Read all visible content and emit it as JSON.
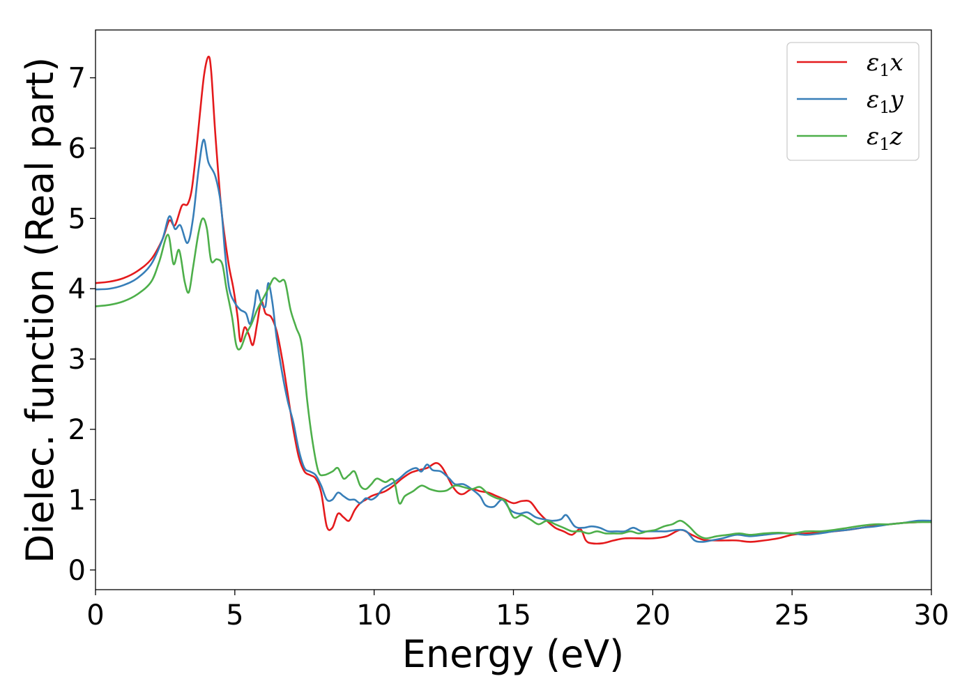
{
  "chart_data": {
    "type": "line",
    "title": "",
    "xlabel": "Energy (eV)",
    "ylabel": "Dielec. function (Real part)",
    "xlim": [
      0,
      30
    ],
    "ylim": [
      -0.28,
      7.68
    ],
    "x_ticks": [
      0,
      5,
      10,
      15,
      20,
      25,
      30
    ],
    "y_ticks": [
      0,
      1,
      2,
      3,
      4,
      5,
      6,
      7
    ],
    "grid": false,
    "legend_position": "top-right",
    "series": [
      {
        "name": "ε1x",
        "name_base": "ε",
        "name_sub": "1",
        "name_var": "x",
        "color": "#e41a1c",
        "points": [
          [
            0,
            4.08
          ],
          [
            0.5,
            4.1
          ],
          [
            1,
            4.15
          ],
          [
            1.5,
            4.25
          ],
          [
            2,
            4.42
          ],
          [
            2.4,
            4.7
          ],
          [
            2.65,
            4.97
          ],
          [
            2.85,
            4.9
          ],
          [
            3.1,
            5.18
          ],
          [
            3.3,
            5.2
          ],
          [
            3.45,
            5.4
          ],
          [
            3.6,
            5.9
          ],
          [
            3.75,
            6.5
          ],
          [
            3.9,
            7.05
          ],
          [
            4.05,
            7.3
          ],
          [
            4.15,
            7.1
          ],
          [
            4.3,
            6.2
          ],
          [
            4.5,
            5.2
          ],
          [
            4.65,
            4.7
          ],
          [
            4.8,
            4.3
          ],
          [
            4.95,
            4.0
          ],
          [
            5.1,
            3.6
          ],
          [
            5.2,
            3.25
          ],
          [
            5.35,
            3.45
          ],
          [
            5.5,
            3.35
          ],
          [
            5.65,
            3.2
          ],
          [
            5.8,
            3.5
          ],
          [
            5.95,
            3.82
          ],
          [
            6.1,
            3.65
          ],
          [
            6.3,
            3.6
          ],
          [
            6.5,
            3.4
          ],
          [
            6.7,
            3.0
          ],
          [
            6.9,
            2.5
          ],
          [
            7.1,
            2.0
          ],
          [
            7.3,
            1.6
          ],
          [
            7.5,
            1.4
          ],
          [
            7.7,
            1.35
          ],
          [
            7.9,
            1.3
          ],
          [
            8.1,
            1.1
          ],
          [
            8.3,
            0.62
          ],
          [
            8.5,
            0.6
          ],
          [
            8.7,
            0.8
          ],
          [
            8.9,
            0.75
          ],
          [
            9.1,
            0.7
          ],
          [
            9.3,
            0.85
          ],
          [
            9.5,
            0.95
          ],
          [
            9.7,
            1.0
          ],
          [
            9.9,
            1.05
          ],
          [
            10.1,
            1.08
          ],
          [
            10.4,
            1.12
          ],
          [
            10.7,
            1.2
          ],
          [
            11,
            1.3
          ],
          [
            11.3,
            1.38
          ],
          [
            11.6,
            1.42
          ],
          [
            11.9,
            1.45
          ],
          [
            12.2,
            1.52
          ],
          [
            12.4,
            1.48
          ],
          [
            12.6,
            1.35
          ],
          [
            12.8,
            1.2
          ],
          [
            13,
            1.1
          ],
          [
            13.2,
            1.08
          ],
          [
            13.5,
            1.15
          ],
          [
            13.8,
            1.12
          ],
          [
            14.1,
            1.1
          ],
          [
            14.4,
            1.05
          ],
          [
            14.7,
            1.0
          ],
          [
            15.0,
            0.95
          ],
          [
            15.3,
            0.98
          ],
          [
            15.6,
            0.97
          ],
          [
            15.9,
            0.82
          ],
          [
            16.2,
            0.7
          ],
          [
            16.5,
            0.6
          ],
          [
            16.8,
            0.55
          ],
          [
            17.1,
            0.5
          ],
          [
            17.4,
            0.58
          ],
          [
            17.6,
            0.42
          ],
          [
            17.8,
            0.38
          ],
          [
            18.2,
            0.38
          ],
          [
            18.6,
            0.42
          ],
          [
            19,
            0.45
          ],
          [
            19.5,
            0.45
          ],
          [
            20,
            0.45
          ],
          [
            20.5,
            0.48
          ],
          [
            21,
            0.57
          ],
          [
            21.4,
            0.5
          ],
          [
            21.8,
            0.43
          ],
          [
            22.2,
            0.42
          ],
          [
            22.6,
            0.42
          ],
          [
            23,
            0.42
          ],
          [
            23.5,
            0.4
          ],
          [
            24,
            0.42
          ],
          [
            24.5,
            0.45
          ],
          [
            25,
            0.5
          ],
          [
            25.5,
            0.52
          ],
          [
            26,
            0.53
          ],
          [
            26.5,
            0.55
          ],
          [
            27,
            0.57
          ],
          [
            27.5,
            0.6
          ],
          [
            28,
            0.63
          ],
          [
            28.5,
            0.65
          ],
          [
            29,
            0.67
          ],
          [
            29.5,
            0.68
          ],
          [
            30,
            0.7
          ]
        ]
      },
      {
        "name": "ε1y",
        "name_base": "ε",
        "name_sub": "1",
        "name_var": "y",
        "color": "#377eb8",
        "points": [
          [
            0,
            3.99
          ],
          [
            0.5,
            4.0
          ],
          [
            1,
            4.05
          ],
          [
            1.5,
            4.15
          ],
          [
            2,
            4.35
          ],
          [
            2.4,
            4.7
          ],
          [
            2.65,
            5.03
          ],
          [
            2.85,
            4.85
          ],
          [
            3.05,
            4.9
          ],
          [
            3.3,
            4.65
          ],
          [
            3.5,
            5.0
          ],
          [
            3.7,
            5.7
          ],
          [
            3.88,
            6.12
          ],
          [
            4.05,
            5.8
          ],
          [
            4.3,
            5.6
          ],
          [
            4.5,
            5.2
          ],
          [
            4.65,
            4.5
          ],
          [
            4.8,
            4.0
          ],
          [
            5.0,
            3.8
          ],
          [
            5.2,
            3.7
          ],
          [
            5.4,
            3.65
          ],
          [
            5.55,
            3.5
          ],
          [
            5.7,
            3.75
          ],
          [
            5.8,
            3.98
          ],
          [
            5.95,
            3.8
          ],
          [
            6.1,
            3.75
          ],
          [
            6.2,
            4.08
          ],
          [
            6.35,
            3.8
          ],
          [
            6.5,
            3.3
          ],
          [
            6.7,
            2.8
          ],
          [
            6.9,
            2.4
          ],
          [
            7.1,
            2.1
          ],
          [
            7.3,
            1.7
          ],
          [
            7.5,
            1.45
          ],
          [
            7.7,
            1.4
          ],
          [
            7.9,
            1.35
          ],
          [
            8.1,
            1.2
          ],
          [
            8.3,
            1.0
          ],
          [
            8.5,
            1.0
          ],
          [
            8.7,
            1.1
          ],
          [
            8.9,
            1.05
          ],
          [
            9.1,
            1.0
          ],
          [
            9.3,
            1.0
          ],
          [
            9.5,
            0.95
          ],
          [
            9.7,
            1.02
          ],
          [
            9.9,
            1.0
          ],
          [
            10.1,
            1.05
          ],
          [
            10.3,
            1.15
          ],
          [
            10.6,
            1.22
          ],
          [
            10.9,
            1.3
          ],
          [
            11.2,
            1.4
          ],
          [
            11.5,
            1.45
          ],
          [
            11.7,
            1.4
          ],
          [
            11.9,
            1.5
          ],
          [
            12.1,
            1.42
          ],
          [
            12.4,
            1.4
          ],
          [
            12.7,
            1.3
          ],
          [
            12.9,
            1.22
          ],
          [
            13.2,
            1.22
          ],
          [
            13.5,
            1.15
          ],
          [
            13.8,
            1.05
          ],
          [
            14.0,
            0.92
          ],
          [
            14.3,
            0.9
          ],
          [
            14.6,
            1.0
          ],
          [
            14.9,
            0.85
          ],
          [
            15.2,
            0.8
          ],
          [
            15.5,
            0.82
          ],
          [
            15.8,
            0.75
          ],
          [
            16.1,
            0.72
          ],
          [
            16.4,
            0.7
          ],
          [
            16.7,
            0.72
          ],
          [
            16.9,
            0.78
          ],
          [
            17.2,
            0.62
          ],
          [
            17.5,
            0.6
          ],
          [
            17.8,
            0.62
          ],
          [
            18.1,
            0.6
          ],
          [
            18.4,
            0.55
          ],
          [
            18.7,
            0.55
          ],
          [
            19,
            0.55
          ],
          [
            19.3,
            0.6
          ],
          [
            19.6,
            0.55
          ],
          [
            19.9,
            0.55
          ],
          [
            20.2,
            0.55
          ],
          [
            20.5,
            0.55
          ],
          [
            20.9,
            0.57
          ],
          [
            21.2,
            0.55
          ],
          [
            21.5,
            0.42
          ],
          [
            21.8,
            0.4
          ],
          [
            22.1,
            0.42
          ],
          [
            22.5,
            0.45
          ],
          [
            23,
            0.5
          ],
          [
            23.5,
            0.48
          ],
          [
            24,
            0.5
          ],
          [
            24.5,
            0.52
          ],
          [
            25,
            0.52
          ],
          [
            25.5,
            0.5
          ],
          [
            26,
            0.52
          ],
          [
            26.5,
            0.55
          ],
          [
            27,
            0.57
          ],
          [
            27.5,
            0.6
          ],
          [
            28,
            0.62
          ],
          [
            28.5,
            0.65
          ],
          [
            29,
            0.67
          ],
          [
            29.5,
            0.7
          ],
          [
            30,
            0.7
          ]
        ]
      },
      {
        "name": "ε1z",
        "name_base": "ε",
        "name_sub": "1",
        "name_var": "z",
        "color": "#4daf4a",
        "points": [
          [
            0,
            3.75
          ],
          [
            0.5,
            3.77
          ],
          [
            1,
            3.82
          ],
          [
            1.5,
            3.92
          ],
          [
            2,
            4.1
          ],
          [
            2.3,
            4.4
          ],
          [
            2.6,
            4.77
          ],
          [
            2.8,
            4.35
          ],
          [
            3.0,
            4.55
          ],
          [
            3.2,
            4.1
          ],
          [
            3.35,
            3.95
          ],
          [
            3.5,
            4.3
          ],
          [
            3.7,
            4.8
          ],
          [
            3.85,
            5.0
          ],
          [
            4.0,
            4.85
          ],
          [
            4.15,
            4.4
          ],
          [
            4.35,
            4.42
          ],
          [
            4.55,
            4.35
          ],
          [
            4.7,
            4.0
          ],
          [
            4.9,
            3.6
          ],
          [
            5.05,
            3.2
          ],
          [
            5.2,
            3.15
          ],
          [
            5.4,
            3.35
          ],
          [
            5.6,
            3.5
          ],
          [
            5.8,
            3.7
          ],
          [
            6.0,
            3.85
          ],
          [
            6.2,
            4.0
          ],
          [
            6.4,
            4.15
          ],
          [
            6.6,
            4.1
          ],
          [
            6.8,
            4.1
          ],
          [
            7.0,
            3.7
          ],
          [
            7.2,
            3.45
          ],
          [
            7.4,
            3.2
          ],
          [
            7.6,
            2.4
          ],
          [
            7.8,
            1.8
          ],
          [
            8.0,
            1.4
          ],
          [
            8.2,
            1.35
          ],
          [
            8.5,
            1.4
          ],
          [
            8.7,
            1.45
          ],
          [
            8.9,
            1.3
          ],
          [
            9.1,
            1.35
          ],
          [
            9.3,
            1.4
          ],
          [
            9.5,
            1.2
          ],
          [
            9.7,
            1.15
          ],
          [
            9.9,
            1.22
          ],
          [
            10.1,
            1.3
          ],
          [
            10.4,
            1.25
          ],
          [
            10.7,
            1.28
          ],
          [
            10.9,
            0.95
          ],
          [
            11.1,
            1.05
          ],
          [
            11.4,
            1.12
          ],
          [
            11.7,
            1.2
          ],
          [
            12.0,
            1.15
          ],
          [
            12.3,
            1.12
          ],
          [
            12.6,
            1.13
          ],
          [
            12.9,
            1.2
          ],
          [
            13.2,
            1.18
          ],
          [
            13.5,
            1.15
          ],
          [
            13.8,
            1.18
          ],
          [
            14.1,
            1.08
          ],
          [
            14.4,
            1.02
          ],
          [
            14.7,
            0.98
          ],
          [
            15.0,
            0.75
          ],
          [
            15.3,
            0.78
          ],
          [
            15.6,
            0.72
          ],
          [
            15.9,
            0.65
          ],
          [
            16.2,
            0.7
          ],
          [
            16.5,
            0.65
          ],
          [
            16.8,
            0.6
          ],
          [
            17.1,
            0.55
          ],
          [
            17.4,
            0.55
          ],
          [
            17.7,
            0.52
          ],
          [
            18.0,
            0.55
          ],
          [
            18.3,
            0.52
          ],
          [
            18.6,
            0.52
          ],
          [
            18.9,
            0.52
          ],
          [
            19.2,
            0.55
          ],
          [
            19.5,
            0.52
          ],
          [
            19.8,
            0.55
          ],
          [
            20.1,
            0.57
          ],
          [
            20.4,
            0.62
          ],
          [
            20.7,
            0.65
          ],
          [
            21.0,
            0.7
          ],
          [
            21.3,
            0.62
          ],
          [
            21.6,
            0.5
          ],
          [
            21.9,
            0.45
          ],
          [
            22.3,
            0.48
          ],
          [
            22.7,
            0.5
          ],
          [
            23.1,
            0.52
          ],
          [
            23.5,
            0.5
          ],
          [
            24,
            0.52
          ],
          [
            24.5,
            0.53
          ],
          [
            25,
            0.52
          ],
          [
            25.5,
            0.55
          ],
          [
            26,
            0.55
          ],
          [
            26.5,
            0.57
          ],
          [
            27,
            0.6
          ],
          [
            27.5,
            0.63
          ],
          [
            28,
            0.65
          ],
          [
            28.5,
            0.65
          ],
          [
            29,
            0.67
          ],
          [
            29.5,
            0.68
          ],
          [
            30,
            0.68
          ]
        ]
      }
    ]
  }
}
